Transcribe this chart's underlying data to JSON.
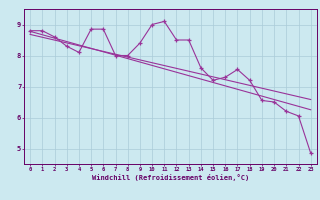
{
  "xlabel": "Windchill (Refroidissement éolien,°C)",
  "bg_color": "#cce9f0",
  "line_color": "#993399",
  "grid_color": "#aaccd9",
  "axis_color": "#660066",
  "xlim": [
    -0.5,
    23.5
  ],
  "ylim": [
    4.5,
    9.5
  ],
  "xticks": [
    0,
    1,
    2,
    3,
    4,
    5,
    6,
    7,
    8,
    9,
    10,
    11,
    12,
    13,
    14,
    15,
    16,
    17,
    18,
    19,
    20,
    21,
    22,
    23
  ],
  "yticks": [
    5,
    6,
    7,
    8,
    9
  ],
  "series1_x": [
    0,
    1,
    2,
    3,
    4,
    5,
    6,
    7,
    8,
    9,
    10,
    11,
    12,
    13,
    14,
    15,
    16,
    17,
    18,
    19,
    20,
    21,
    22,
    23
  ],
  "series1_y": [
    8.8,
    8.8,
    8.6,
    8.3,
    8.1,
    8.85,
    8.85,
    8.0,
    8.0,
    8.4,
    9.0,
    9.1,
    8.5,
    8.5,
    7.6,
    7.2,
    7.3,
    7.55,
    7.2,
    6.55,
    6.5,
    6.2,
    6.05,
    4.85
  ],
  "series2_x": [
    0,
    23
  ],
  "series2_y": [
    8.78,
    6.25
  ],
  "series3_x": [
    0,
    23
  ],
  "series3_y": [
    8.68,
    6.58
  ]
}
